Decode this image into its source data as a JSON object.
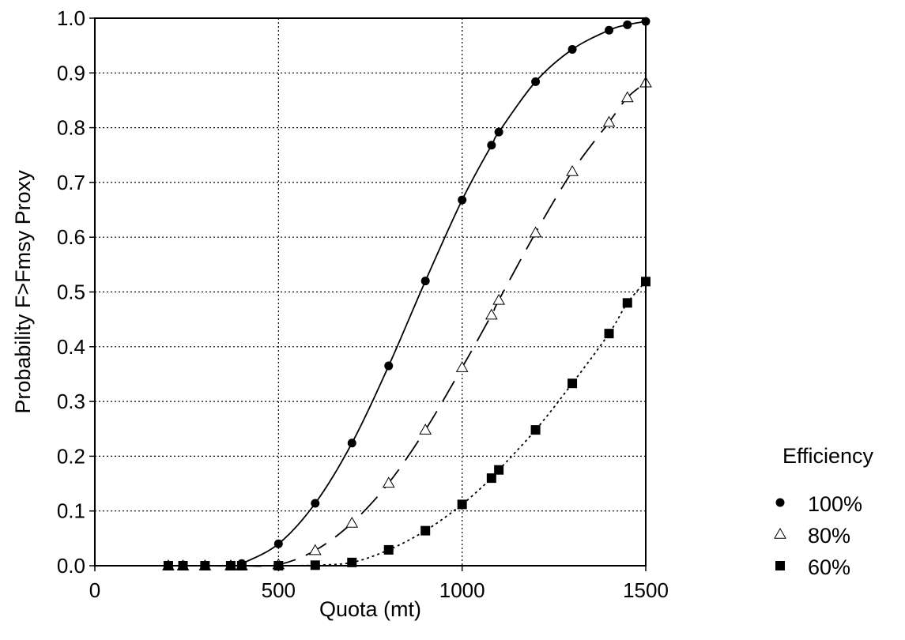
{
  "chart_data": {
    "type": "line",
    "title": "",
    "xlabel": "Quota (mt)",
    "ylabel": "Probability F>Fmsy Proxy",
    "xlim": [
      0,
      1500
    ],
    "ylim": [
      0,
      1.0
    ],
    "x_ticks": [
      0,
      500,
      1000,
      1500
    ],
    "y_ticks": [
      0.0,
      0.1,
      0.2,
      0.3,
      0.4,
      0.5,
      0.6,
      0.7,
      0.8,
      0.9,
      1.0
    ],
    "x_tick_labels": [
      "0",
      "500",
      "1000",
      "1500"
    ],
    "y_tick_labels": [
      "0.0",
      "0.1",
      "0.2",
      "0.3",
      "0.4",
      "0.5",
      "0.6",
      "0.7",
      "0.8",
      "0.9",
      "1.0"
    ],
    "grid": "dotted, at major ticks",
    "legend_title": "Efficiency",
    "legend_position": "right, outside plot",
    "series": [
      {
        "name": "100%",
        "marker": "circle",
        "line_style": "solid",
        "x": [
          200,
          240,
          300,
          370,
          400,
          500,
          600,
          700,
          800,
          900,
          1000,
          1080,
          1100,
          1200,
          1300,
          1400,
          1450,
          1500
        ],
        "y": [
          0.0,
          0.0,
          0.0,
          0.0,
          0.004,
          0.04,
          0.114,
          0.224,
          0.365,
          0.52,
          0.668,
          0.768,
          0.792,
          0.884,
          0.943,
          0.978,
          0.988,
          0.994
        ]
      },
      {
        "name": "80%",
        "marker": "open-triangle",
        "line_style": "long-dash",
        "x": [
          200,
          240,
          300,
          370,
          400,
          500,
          600,
          700,
          800,
          900,
          1000,
          1080,
          1100,
          1200,
          1300,
          1400,
          1450,
          1500
        ],
        "y": [
          0.0,
          0.0,
          0.0,
          0.0,
          0.0,
          0.002,
          0.028,
          0.078,
          0.151,
          0.248,
          0.362,
          0.458,
          0.485,
          0.608,
          0.72,
          0.81,
          0.855,
          0.882
        ]
      },
      {
        "name": "60%",
        "marker": "filled-square",
        "line_style": "dotted",
        "x": [
          200,
          240,
          300,
          370,
          400,
          500,
          600,
          700,
          800,
          900,
          1000,
          1080,
          1100,
          1200,
          1300,
          1400,
          1450,
          1500
        ],
        "y": [
          0.0,
          0.0,
          0.0,
          0.0,
          0.0,
          0.0,
          0.001,
          0.006,
          0.029,
          0.064,
          0.112,
          0.16,
          0.175,
          0.248,
          0.333,
          0.424,
          0.48,
          0.519
        ]
      }
    ]
  }
}
